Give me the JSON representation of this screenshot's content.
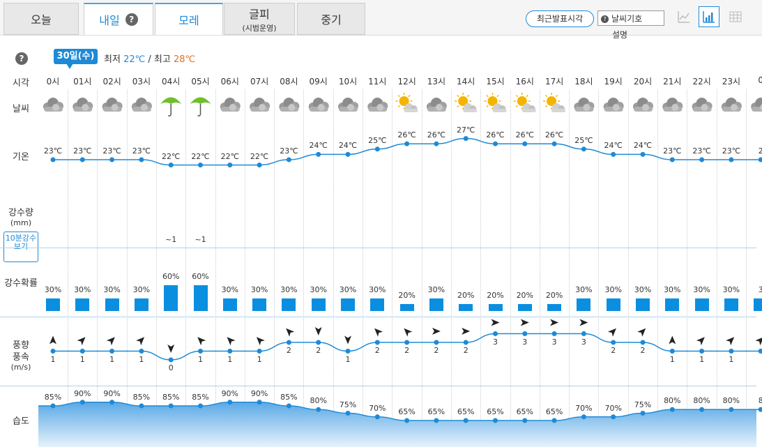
{
  "tabs": [
    {
      "label": "오늘",
      "sub": ""
    },
    {
      "label": "내일",
      "sub": ""
    },
    {
      "label": "모레",
      "sub": ""
    },
    {
      "label": "글피",
      "sub": "(시범운영)"
    },
    {
      "label": "중기",
      "sub": ""
    }
  ],
  "help_mark": "?",
  "toolbar": {
    "latest_btn": "최근발표시각",
    "symbol_select": "날씨기호",
    "symbol_desc": "설명"
  },
  "day": {
    "date_badge": "30일(수)",
    "min_label": "최저",
    "min_value": "22℃",
    "sep": "/",
    "max_label": "최고",
    "max_value": "28℃"
  },
  "row_labels": {
    "time": "시각",
    "weather": "날씨",
    "temp": "기온",
    "rain": "강수량",
    "rain_unit": "(mm)",
    "ten_min": "10분강수보기",
    "prob": "강수확률",
    "wind1": "풍향",
    "wind2": "풍속",
    "wind_unit": "(m/s)",
    "humid": "습도"
  },
  "hours": [
    "0시",
    "01시",
    "02시",
    "03시",
    "04시",
    "05시",
    "06시",
    "07시",
    "08시",
    "09시",
    "10시",
    "11시",
    "12시",
    "13시",
    "14시",
    "15시",
    "16시",
    "17시",
    "18시",
    "19시",
    "20시",
    "21시",
    "22시",
    "23시",
    "0"
  ],
  "weather": [
    "cloudy",
    "cloudy",
    "cloudy",
    "cloudy",
    "umbrella",
    "umbrella",
    "cloudy",
    "cloudy",
    "cloudy",
    "cloudy",
    "cloudy",
    "cloudy",
    "partly-sunny",
    "cloudy",
    "partly-sunny",
    "partly-sunny",
    "partly-sunny",
    "partly-sunny",
    "cloudy",
    "cloudy",
    "cloudy",
    "cloudy",
    "cloudy",
    "cloudy",
    "cloudy"
  ],
  "temps": [
    23,
    23,
    23,
    23,
    22,
    22,
    22,
    22,
    23,
    24,
    24,
    25,
    26,
    26,
    27,
    26,
    26,
    26,
    25,
    24,
    24,
    23,
    23,
    23,
    2
  ],
  "temp_unit": "℃",
  "rain": [
    "",
    "",
    "",
    "",
    "~1",
    "~1",
    "",
    "",
    "",
    "",
    "",
    "",
    "",
    "",
    "",
    "",
    "",
    "",
    "",
    "",
    "",
    "",
    "",
    "",
    ""
  ],
  "prob": [
    30,
    30,
    30,
    30,
    60,
    60,
    30,
    30,
    30,
    30,
    30,
    30,
    20,
    30,
    20,
    20,
    20,
    20,
    30,
    30,
    30,
    30,
    30,
    30,
    3
  ],
  "wind_speed": [
    1,
    1,
    1,
    1,
    0,
    1,
    1,
    1,
    2,
    2,
    1,
    2,
    2,
    2,
    2,
    3,
    3,
    3,
    3,
    2,
    2,
    1,
    1,
    1,
    1
  ],
  "wind_dir": [
    "N",
    "NE",
    "NE",
    "NE",
    "S",
    "NW",
    "NW",
    "NW",
    "NW",
    "S",
    "S",
    "NW",
    "NW",
    "E",
    "E",
    "E",
    "E",
    "E",
    "E",
    "NE",
    "NE",
    "N",
    "NE",
    "NE",
    "NE"
  ],
  "humidity": [
    85,
    90,
    90,
    85,
    85,
    85,
    90,
    90,
    85,
    80,
    75,
    70,
    65,
    65,
    65,
    65,
    65,
    65,
    70,
    70,
    75,
    80,
    80,
    80,
    8
  ],
  "colors": {
    "accent": "#1e8ad6",
    "bar": "#0a8ee0",
    "max": "#e0701a"
  }
}
